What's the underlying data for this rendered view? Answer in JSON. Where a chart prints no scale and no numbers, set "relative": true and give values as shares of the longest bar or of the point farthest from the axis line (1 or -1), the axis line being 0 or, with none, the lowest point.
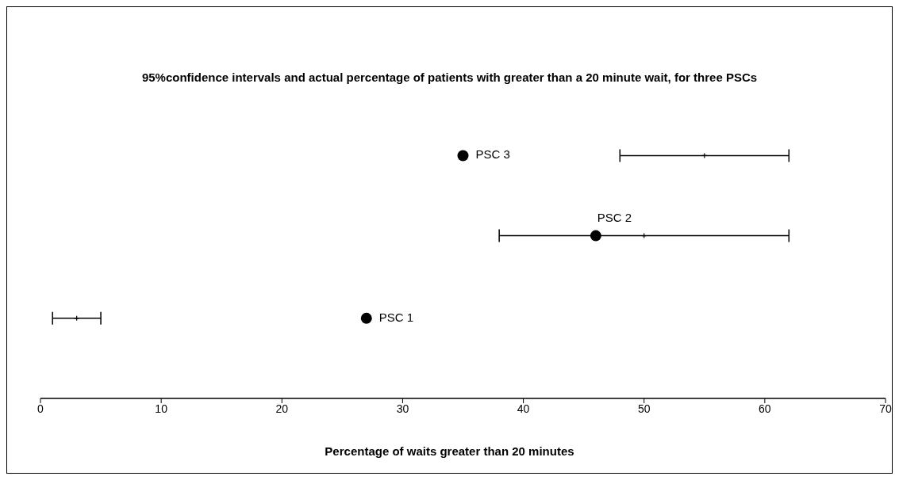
{
  "chart_data": {
    "type": "scatter",
    "title": "95%confidence intervals and actual percentage of patients with greater than a 20 minute wait, for three PSCs",
    "xlabel": "Percentage of waits greater than 20 minutes",
    "relative": true,
    "xlim": [
      0,
      70
    ],
    "xticks": [
      0,
      10,
      20,
      30,
      40,
      50,
      60,
      70
    ],
    "grid": false,
    "legend": false,
    "tick_labels": "x",
    "series": [
      {
        "color": "#000000",
        "marker": "circle",
        "x": [
          27,
          46,
          35
        ],
        "values": [
          0.33,
          0.67,
          1
        ]
      },
      {
        "color": "#000000",
        "marker": "cross",
        "x": [
          3,
          50,
          55
        ],
        "values": [
          0.33,
          0.67,
          1
        ],
        "xerrors": [
          2,
          12,
          7
        ]
      }
    ],
    "annotations": [
      {
        "text": "PSC 1",
        "x": 27,
        "y": 0.33
      },
      {
        "text": "PSC 2",
        "x": 46,
        "y": 0.67
      },
      {
        "text": "PSC 3",
        "x": 35,
        "y": 1
      }
    ]
  }
}
